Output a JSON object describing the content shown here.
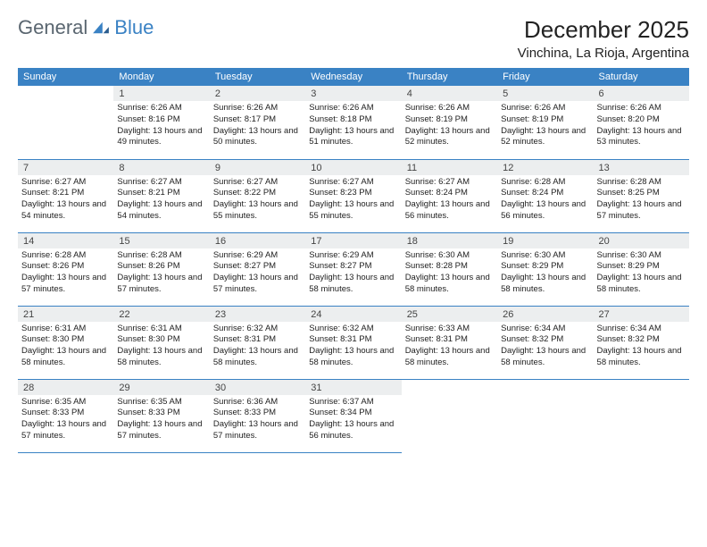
{
  "logo": {
    "text1": "General",
    "text2": "Blue"
  },
  "title": "December 2025",
  "location": "Vinchina, La Rioja, Argentina",
  "weekdays": [
    "Sunday",
    "Monday",
    "Tuesday",
    "Wednesday",
    "Thursday",
    "Friday",
    "Saturday"
  ],
  "colors": {
    "header_bg": "#3a82c4",
    "header_text": "#ffffff",
    "daynum_bg": "#eceeef",
    "rule": "#3a82c4",
    "logo_gray": "#5a6670",
    "logo_blue": "#3a82c4"
  },
  "first_weekday_index": 1,
  "days": [
    {
      "n": 1,
      "sr": "6:26 AM",
      "ss": "8:16 PM",
      "dl": "13 hours and 49 minutes."
    },
    {
      "n": 2,
      "sr": "6:26 AM",
      "ss": "8:17 PM",
      "dl": "13 hours and 50 minutes."
    },
    {
      "n": 3,
      "sr": "6:26 AM",
      "ss": "8:18 PM",
      "dl": "13 hours and 51 minutes."
    },
    {
      "n": 4,
      "sr": "6:26 AM",
      "ss": "8:19 PM",
      "dl": "13 hours and 52 minutes."
    },
    {
      "n": 5,
      "sr": "6:26 AM",
      "ss": "8:19 PM",
      "dl": "13 hours and 52 minutes."
    },
    {
      "n": 6,
      "sr": "6:26 AM",
      "ss": "8:20 PM",
      "dl": "13 hours and 53 minutes."
    },
    {
      "n": 7,
      "sr": "6:27 AM",
      "ss": "8:21 PM",
      "dl": "13 hours and 54 minutes."
    },
    {
      "n": 8,
      "sr": "6:27 AM",
      "ss": "8:21 PM",
      "dl": "13 hours and 54 minutes."
    },
    {
      "n": 9,
      "sr": "6:27 AM",
      "ss": "8:22 PM",
      "dl": "13 hours and 55 minutes."
    },
    {
      "n": 10,
      "sr": "6:27 AM",
      "ss": "8:23 PM",
      "dl": "13 hours and 55 minutes."
    },
    {
      "n": 11,
      "sr": "6:27 AM",
      "ss": "8:24 PM",
      "dl": "13 hours and 56 minutes."
    },
    {
      "n": 12,
      "sr": "6:28 AM",
      "ss": "8:24 PM",
      "dl": "13 hours and 56 minutes."
    },
    {
      "n": 13,
      "sr": "6:28 AM",
      "ss": "8:25 PM",
      "dl": "13 hours and 57 minutes."
    },
    {
      "n": 14,
      "sr": "6:28 AM",
      "ss": "8:26 PM",
      "dl": "13 hours and 57 minutes."
    },
    {
      "n": 15,
      "sr": "6:28 AM",
      "ss": "8:26 PM",
      "dl": "13 hours and 57 minutes."
    },
    {
      "n": 16,
      "sr": "6:29 AM",
      "ss": "8:27 PM",
      "dl": "13 hours and 57 minutes."
    },
    {
      "n": 17,
      "sr": "6:29 AM",
      "ss": "8:27 PM",
      "dl": "13 hours and 58 minutes."
    },
    {
      "n": 18,
      "sr": "6:30 AM",
      "ss": "8:28 PM",
      "dl": "13 hours and 58 minutes."
    },
    {
      "n": 19,
      "sr": "6:30 AM",
      "ss": "8:29 PM",
      "dl": "13 hours and 58 minutes."
    },
    {
      "n": 20,
      "sr": "6:30 AM",
      "ss": "8:29 PM",
      "dl": "13 hours and 58 minutes."
    },
    {
      "n": 21,
      "sr": "6:31 AM",
      "ss": "8:30 PM",
      "dl": "13 hours and 58 minutes."
    },
    {
      "n": 22,
      "sr": "6:31 AM",
      "ss": "8:30 PM",
      "dl": "13 hours and 58 minutes."
    },
    {
      "n": 23,
      "sr": "6:32 AM",
      "ss": "8:31 PM",
      "dl": "13 hours and 58 minutes."
    },
    {
      "n": 24,
      "sr": "6:32 AM",
      "ss": "8:31 PM",
      "dl": "13 hours and 58 minutes."
    },
    {
      "n": 25,
      "sr": "6:33 AM",
      "ss": "8:31 PM",
      "dl": "13 hours and 58 minutes."
    },
    {
      "n": 26,
      "sr": "6:34 AM",
      "ss": "8:32 PM",
      "dl": "13 hours and 58 minutes."
    },
    {
      "n": 27,
      "sr": "6:34 AM",
      "ss": "8:32 PM",
      "dl": "13 hours and 58 minutes."
    },
    {
      "n": 28,
      "sr": "6:35 AM",
      "ss": "8:33 PM",
      "dl": "13 hours and 57 minutes."
    },
    {
      "n": 29,
      "sr": "6:35 AM",
      "ss": "8:33 PM",
      "dl": "13 hours and 57 minutes."
    },
    {
      "n": 30,
      "sr": "6:36 AM",
      "ss": "8:33 PM",
      "dl": "13 hours and 57 minutes."
    },
    {
      "n": 31,
      "sr": "6:37 AM",
      "ss": "8:34 PM",
      "dl": "13 hours and 56 minutes."
    }
  ],
  "labels": {
    "sunrise": "Sunrise:",
    "sunset": "Sunset:",
    "daylight": "Daylight:"
  }
}
